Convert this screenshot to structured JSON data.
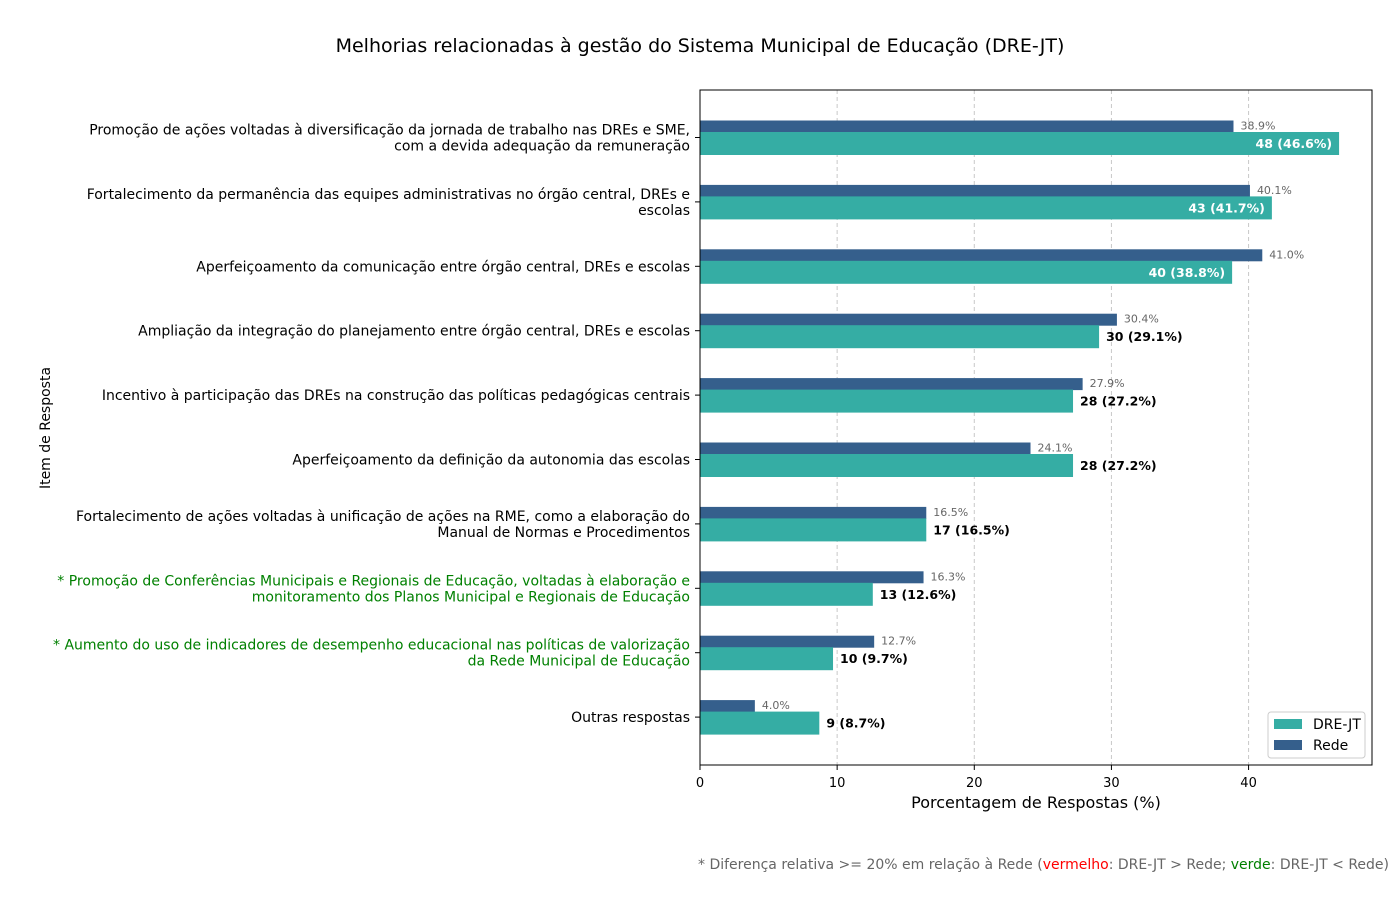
{
  "chart_data": {
    "type": "bar",
    "orientation": "horizontal",
    "title": "Melhorias relacionadas à gestão do Sistema Municipal de Educação (DRE-JT)",
    "xlabel": "Porcentagem de Respostas (%)",
    "ylabel": "Item de Resposta",
    "xlim": [
      0,
      49
    ],
    "xticks": [
      "0",
      "10",
      "20",
      "30",
      "40"
    ],
    "grid": "x-dashed",
    "legend_position": "bottom-right",
    "categories": [
      {
        "lines": [
          "Promoção de ações voltadas à diversificação da jornada de trabalho nas DREs e SME,",
          "com a devida adequação da remuneração"
        ],
        "color": "#000000"
      },
      {
        "lines": [
          "Fortalecimento da permanência das equipes administrativas no órgão central, DREs e",
          "escolas"
        ],
        "color": "#000000"
      },
      {
        "lines": [
          "Aperfeiçoamento da comunicação entre órgão central, DREs e escolas"
        ],
        "color": "#000000"
      },
      {
        "lines": [
          "Ampliação da integração do planejamento entre órgão central, DREs e escolas"
        ],
        "color": "#000000"
      },
      {
        "lines": [
          "Incentivo à participação das DREs na construção das políticas pedagógicas centrais"
        ],
        "color": "#000000"
      },
      {
        "lines": [
          "Aperfeiçoamento da definição da autonomia das escolas"
        ],
        "color": "#000000"
      },
      {
        "lines": [
          "Fortalecimento de ações voltadas à unificação de ações na RME, como a elaboração do",
          "Manual de Normas e Procedimentos"
        ],
        "color": "#000000"
      },
      {
        "lines": [
          "* Promoção de Conferências Municipais e Regionais de Educação, voltadas à elaboração e",
          "monitoramento dos Planos Municipal e Regionais de Educação"
        ],
        "color": "#008000"
      },
      {
        "lines": [
          "* Aumento do uso de indicadores de desempenho educacional nas políticas de valorização",
          "da Rede Municipal de Educação"
        ],
        "color": "#008000"
      },
      {
        "lines": [
          "Outras respostas"
        ],
        "color": "#000000"
      }
    ],
    "series": [
      {
        "name": "DRE-JT",
        "color": "#35ada4",
        "values": [
          46.6,
          41.7,
          38.8,
          29.1,
          27.2,
          27.2,
          16.5,
          12.6,
          9.7,
          8.7
        ],
        "labels": [
          "48 (46.6%)",
          "43 (41.7%)",
          "40 (38.8%)",
          "30 (29.1%)",
          "28 (27.2%)",
          "28 (27.2%)",
          "17 (16.5%)",
          "13 (12.6%)",
          "10 (9.7%)",
          "9 (8.7%)"
        ]
      },
      {
        "name": "Rede",
        "color": "#355f8c",
        "values": [
          38.9,
          40.1,
          41.0,
          30.4,
          27.9,
          24.1,
          16.5,
          16.3,
          12.7,
          4.0
        ],
        "labels": [
          "38.9%",
          "40.1%",
          "41.0%",
          "30.4%",
          "27.9%",
          "24.1%",
          "16.5%",
          "16.3%",
          "12.7%",
          "4.0%"
        ]
      }
    ]
  },
  "footnote": {
    "prefix": "* Diferença relativa >= 20% em relação à Rede (",
    "red_word": "vermelho",
    "middle": ": DRE-JT > Rede; ",
    "green_word": "verde",
    "suffix": ": DRE-JT < Rede)"
  }
}
